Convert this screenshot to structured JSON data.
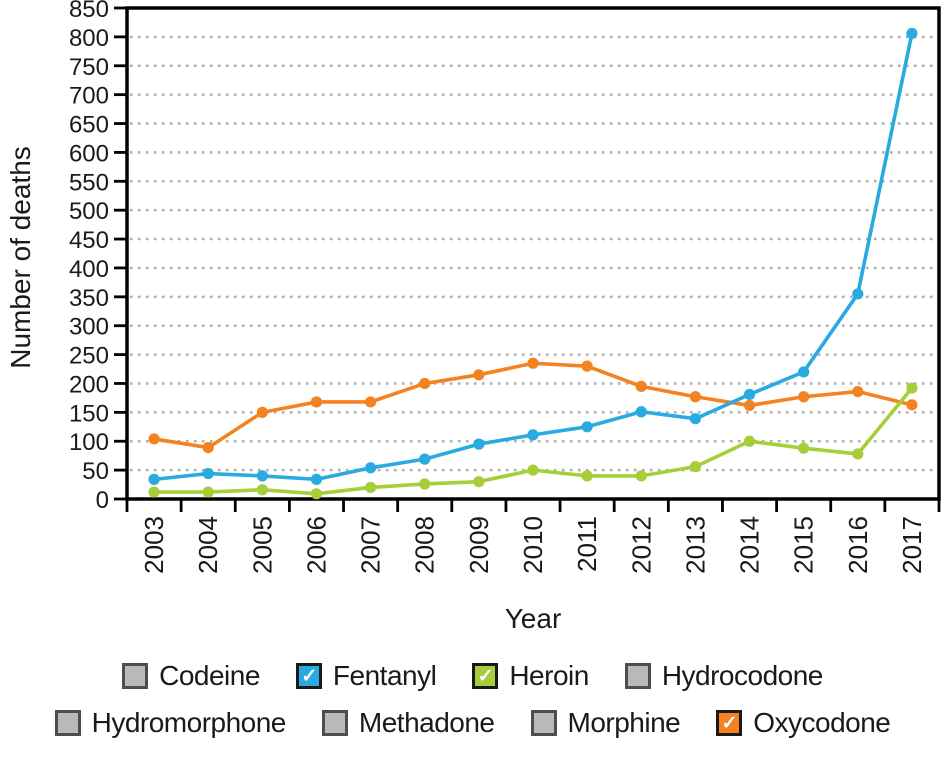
{
  "chart_data": {
    "type": "line",
    "title": "",
    "xlabel": "Year",
    "ylabel": "Number of deaths",
    "x": [
      2003,
      2004,
      2005,
      2006,
      2007,
      2008,
      2009,
      2010,
      2011,
      2012,
      2013,
      2014,
      2015,
      2016,
      2017
    ],
    "ylim": [
      0,
      850
    ],
    "ytick_step": 50,
    "grid": "horizontal-dotted",
    "legend_position": "bottom",
    "series": [
      {
        "name": "Oxycodone",
        "color": "#F58220",
        "values": [
          104,
          89,
          150,
          168,
          168,
          200,
          215,
          235,
          230,
          195,
          177,
          162,
          177,
          186,
          163
        ]
      },
      {
        "name": "Fentanyl",
        "color": "#29ABE2",
        "values": [
          34,
          44,
          40,
          34,
          54,
          69,
          95,
          111,
          125,
          151,
          139,
          181,
          220,
          355,
          806
        ]
      },
      {
        "name": "Heroin",
        "color": "#A6CE39",
        "values": [
          12,
          12,
          16,
          9,
          20,
          26,
          30,
          50,
          40,
          40,
          56,
          100,
          88,
          78,
          192
        ]
      }
    ]
  },
  "legend": {
    "check_glyph": "✓",
    "items": [
      {
        "label": "Codeine",
        "checked": false,
        "color": "#B9B9B9"
      },
      {
        "label": "Fentanyl",
        "checked": true,
        "color": "#29ABE2"
      },
      {
        "label": "Heroin",
        "checked": true,
        "color": "#A6CE39"
      },
      {
        "label": "Hydrocodone",
        "checked": false,
        "color": "#B9B9B9"
      },
      {
        "label": "Hydromorphone",
        "checked": false,
        "color": "#B9B9B9"
      },
      {
        "label": "Methadone",
        "checked": false,
        "color": "#B9B9B9"
      },
      {
        "label": "Morphine",
        "checked": false,
        "color": "#B9B9B9"
      },
      {
        "label": "Oxycodone",
        "checked": true,
        "color": "#F58220"
      }
    ]
  },
  "colors": {
    "axis": "#000000",
    "grid": "#ACACAC",
    "text": "#1A1A1A"
  }
}
